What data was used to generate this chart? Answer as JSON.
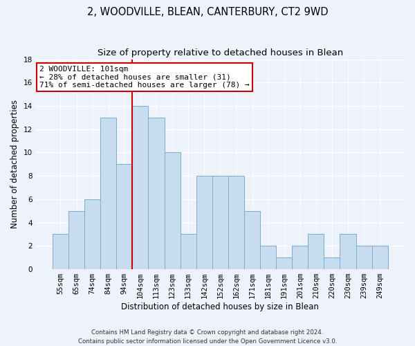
{
  "title": "2, WOODVILLE, BLEAN, CANTERBURY, CT2 9WD",
  "subtitle": "Size of property relative to detached houses in Blean",
  "xlabel": "Distribution of detached houses by size in Blean",
  "ylabel": "Number of detached properties",
  "categories": [
    "55sqm",
    "65sqm",
    "74sqm",
    "84sqm",
    "94sqm",
    "104sqm",
    "113sqm",
    "123sqm",
    "133sqm",
    "142sqm",
    "152sqm",
    "162sqm",
    "171sqm",
    "181sqm",
    "191sqm",
    "201sqm",
    "210sqm",
    "220sqm",
    "230sqm",
    "239sqm",
    "249sqm"
  ],
  "values": [
    3,
    5,
    6,
    13,
    9,
    14,
    13,
    10,
    3,
    8,
    8,
    8,
    5,
    2,
    1,
    2,
    3,
    1,
    3,
    2,
    2
  ],
  "bar_color": "#c8dcf0",
  "bar_edge_color": "#7aabcf",
  "ylim": [
    0,
    18
  ],
  "yticks": [
    0,
    2,
    4,
    6,
    8,
    10,
    12,
    14,
    16,
    18
  ],
  "property_line_color": "#cc0000",
  "property_line_bar_index": 5,
  "annotation_line1": "2 WOODVILLE: 101sqm",
  "annotation_line2": "← 28% of detached houses are smaller (31)",
  "annotation_line3": "71% of semi-detached houses are larger (78) →",
  "annotation_box_color": "#ffffff",
  "annotation_box_edge_color": "#cc0000",
  "footer_line1": "Contains HM Land Registry data © Crown copyright and database right 2024.",
  "footer_line2": "Contains public sector information licensed under the Open Government Licence v3.0.",
  "background_color": "#eef2fa",
  "grid_color": "#ffffff",
  "title_fontsize": 10.5,
  "subtitle_fontsize": 9.5,
  "tick_fontsize": 7.5,
  "ylabel_fontsize": 8.5,
  "xlabel_fontsize": 8.5,
  "annotation_fontsize": 8.0,
  "footer_fontsize": 6.2
}
